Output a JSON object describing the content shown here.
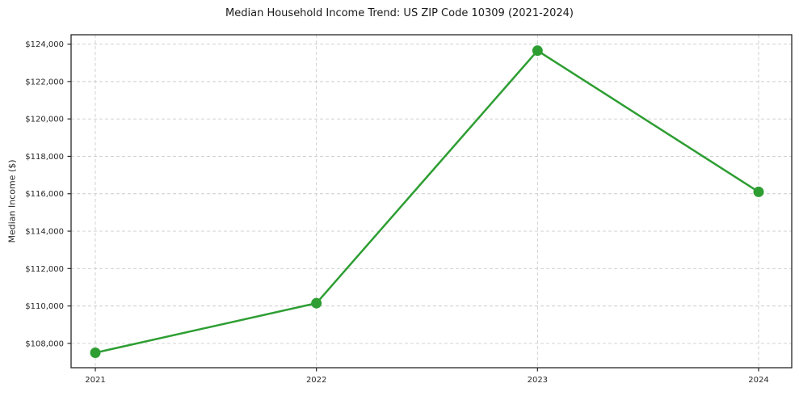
{
  "chart_data": {
    "type": "line",
    "title": "Median Household Income Trend: US ZIP Code 10309 (2021-2024)",
    "xlabel": "",
    "ylabel": "Median Income ($)",
    "categories": [
      "2021",
      "2022",
      "2023",
      "2024"
    ],
    "series": [
      {
        "name": "Median Household Income",
        "values": [
          107500,
          110150,
          123650,
          116100
        ]
      }
    ],
    "yticks": [
      108000,
      110000,
      112000,
      114000,
      116000,
      118000,
      120000,
      122000,
      124000
    ],
    "ytick_labels": [
      "$108,000",
      "$110,000",
      "$112,000",
      "$114,000",
      "$116,000",
      "$118,000",
      "$120,000",
      "$122,000",
      "$124,000"
    ],
    "ylim": [
      106700,
      124500
    ],
    "grid": true,
    "legend": "none",
    "colors": {
      "line": "#2e9e33",
      "marker": "#2e9e33",
      "grid": "#cccccc",
      "spine": "#262626",
      "tick_text": "#262626",
      "title_text": "#1a1a1a",
      "background": "#ffffff"
    },
    "marker_style": "circle",
    "line_width": 2.5
  }
}
